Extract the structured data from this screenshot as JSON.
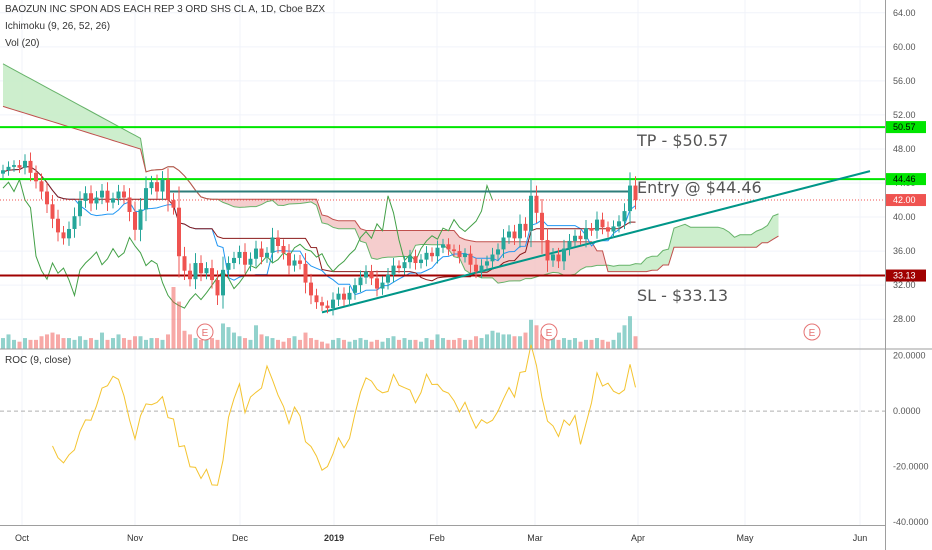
{
  "header": {
    "title": "BAOZUN INC SPON ADS EACH REP 3 ORD SHS CL A, 1D, Cboe BZX",
    "indicator_ichimoku": "Ichimoku (9, 26, 52, 26)",
    "indicator_volume": "Vol (20)"
  },
  "roc_panel": {
    "label": "ROC (9, close)"
  },
  "annotations": {
    "tp": "TP - $50.57",
    "entry": "Entry @ $44.46",
    "sl": "SL - $33.13"
  },
  "colors": {
    "up": "#26a69a",
    "down": "#ef5350",
    "tp_line": "#00e600",
    "sl_line": "#a00000",
    "trendline": "#009688",
    "roc_line": "#f4c430",
    "cloud_bear": "#f4c8c8",
    "cloud_bull": "#c8ecc8"
  },
  "chart_data": [
    {
      "type": "candlestick",
      "title": "BAOZUN INC SPON ADS EACH REP 3 ORD SHS CL A, 1D, Cboe BZX",
      "y_ticks": [
        "64.00",
        "60.00",
        "56.00",
        "52.00",
        "48.00",
        "44.00",
        "40.00",
        "36.00",
        "32.00",
        "28.00"
      ],
      "ylim": [
        24.5,
        65.5
      ],
      "x_months": [
        "Oct",
        "Nov",
        "Dec",
        "2019",
        "Feb",
        "Mar",
        "Apr",
        "May",
        "Jun"
      ],
      "price_labels": [
        {
          "value": 50.57,
          "text": "50.57"
        },
        {
          "value": 44.46,
          "text": "44.46"
        },
        {
          "value": 42.0,
          "text": "42.00"
        },
        {
          "value": 33.13,
          "text": "33.13"
        }
      ],
      "horizontal_levels": {
        "tp": 50.57,
        "entry_zone": 44.46,
        "sl": 33.13,
        "last": 42.0
      },
      "earnings_markers": [
        "E",
        "E",
        "E"
      ],
      "close_series": [
        45.5,
        45.9,
        46.1,
        45.8,
        46.6,
        45.2,
        44.2,
        43.0,
        41.5,
        39.8,
        38.2,
        37.5,
        38.6,
        40.1,
        41.9,
        42.8,
        41.6,
        42.3,
        43.1,
        41.7,
        42.2,
        43.0,
        42.3,
        40.6,
        38.5,
        40.9,
        43.4,
        44.1,
        43.0,
        44.4,
        42.0,
        41.1,
        35.4,
        33.7,
        32.7,
        34.6,
        33.4,
        34.0,
        32.6,
        30.8,
        33.8,
        34.6,
        35.2,
        35.9,
        34.4,
        35.1,
        36.3,
        35.3,
        35.8,
        37.6,
        36.6,
        35.8,
        34.3,
        34.9,
        34.5,
        32.3,
        30.8,
        30.0,
        29.6,
        29.3,
        30.3,
        31.0,
        30.3,
        31.1,
        32.0,
        32.9,
        33.6,
        32.8,
        31.6,
        32.3,
        33.2,
        34.3,
        34.0,
        34.7,
        35.4,
        34.6,
        35.0,
        35.8,
        35.4,
        36.4,
        36.8,
        36.2,
        36.0,
        35.3,
        35.7,
        34.4,
        33.6,
        34.3,
        34.8,
        35.6,
        36.2,
        37.6,
        38.3,
        37.5,
        39.2,
        38.4,
        42.5,
        40.5,
        37.3,
        34.9,
        35.6,
        34.8,
        36.3,
        37.2,
        37.8,
        37.4,
        38.7,
        38.4,
        39.7,
        38.8,
        38.3,
        38.9,
        39.5,
        40.7,
        43.7,
        42.0
      ],
      "volume_series": [
        0.6,
        0.8,
        0.5,
        0.4,
        0.6,
        0.5,
        0.5,
        0.7,
        0.8,
        0.9,
        0.8,
        0.6,
        0.6,
        0.5,
        0.7,
        0.5,
        0.6,
        0.5,
        0.9,
        0.5,
        0.6,
        0.8,
        0.6,
        0.5,
        0.7,
        0.7,
        0.5,
        0.6,
        0.6,
        0.5,
        0.8,
        3.4,
        2.6,
        1.0,
        0.8,
        0.6,
        0.5,
        0.7,
        0.6,
        0.5,
        1.4,
        1.2,
        0.9,
        0.7,
        0.6,
        0.5,
        1.3,
        0.8,
        0.7,
        0.6,
        0.5,
        0.4,
        0.6,
        0.7,
        0.5,
        0.9,
        0.6,
        0.5,
        0.4,
        0.3,
        0.5,
        0.6,
        0.5,
        0.4,
        0.5,
        0.6,
        0.5,
        0.4,
        0.5,
        0.4,
        0.6,
        0.7,
        0.5,
        0.6,
        0.5,
        0.5,
        0.4,
        0.6,
        0.5,
        0.8,
        0.6,
        0.5,
        0.5,
        0.6,
        0.5,
        0.5,
        0.7,
        0.6,
        0.8,
        1.0,
        0.9,
        0.8,
        0.8,
        0.7,
        0.7,
        0.9,
        1.6,
        1.3,
        0.8,
        0.7,
        0.6,
        0.5,
        0.6,
        0.5,
        0.6,
        0.4,
        0.5,
        0.5,
        0.6,
        0.5,
        0.4,
        0.5,
        0.9,
        1.3,
        1.8,
        0.7
      ]
    },
    {
      "type": "line",
      "title": "ROC (9, close)",
      "y_ticks": [
        "20.0000",
        "0.0000",
        "-20.0000",
        "-40.0000"
      ],
      "ylim": [
        -41,
        22
      ]
    }
  ]
}
